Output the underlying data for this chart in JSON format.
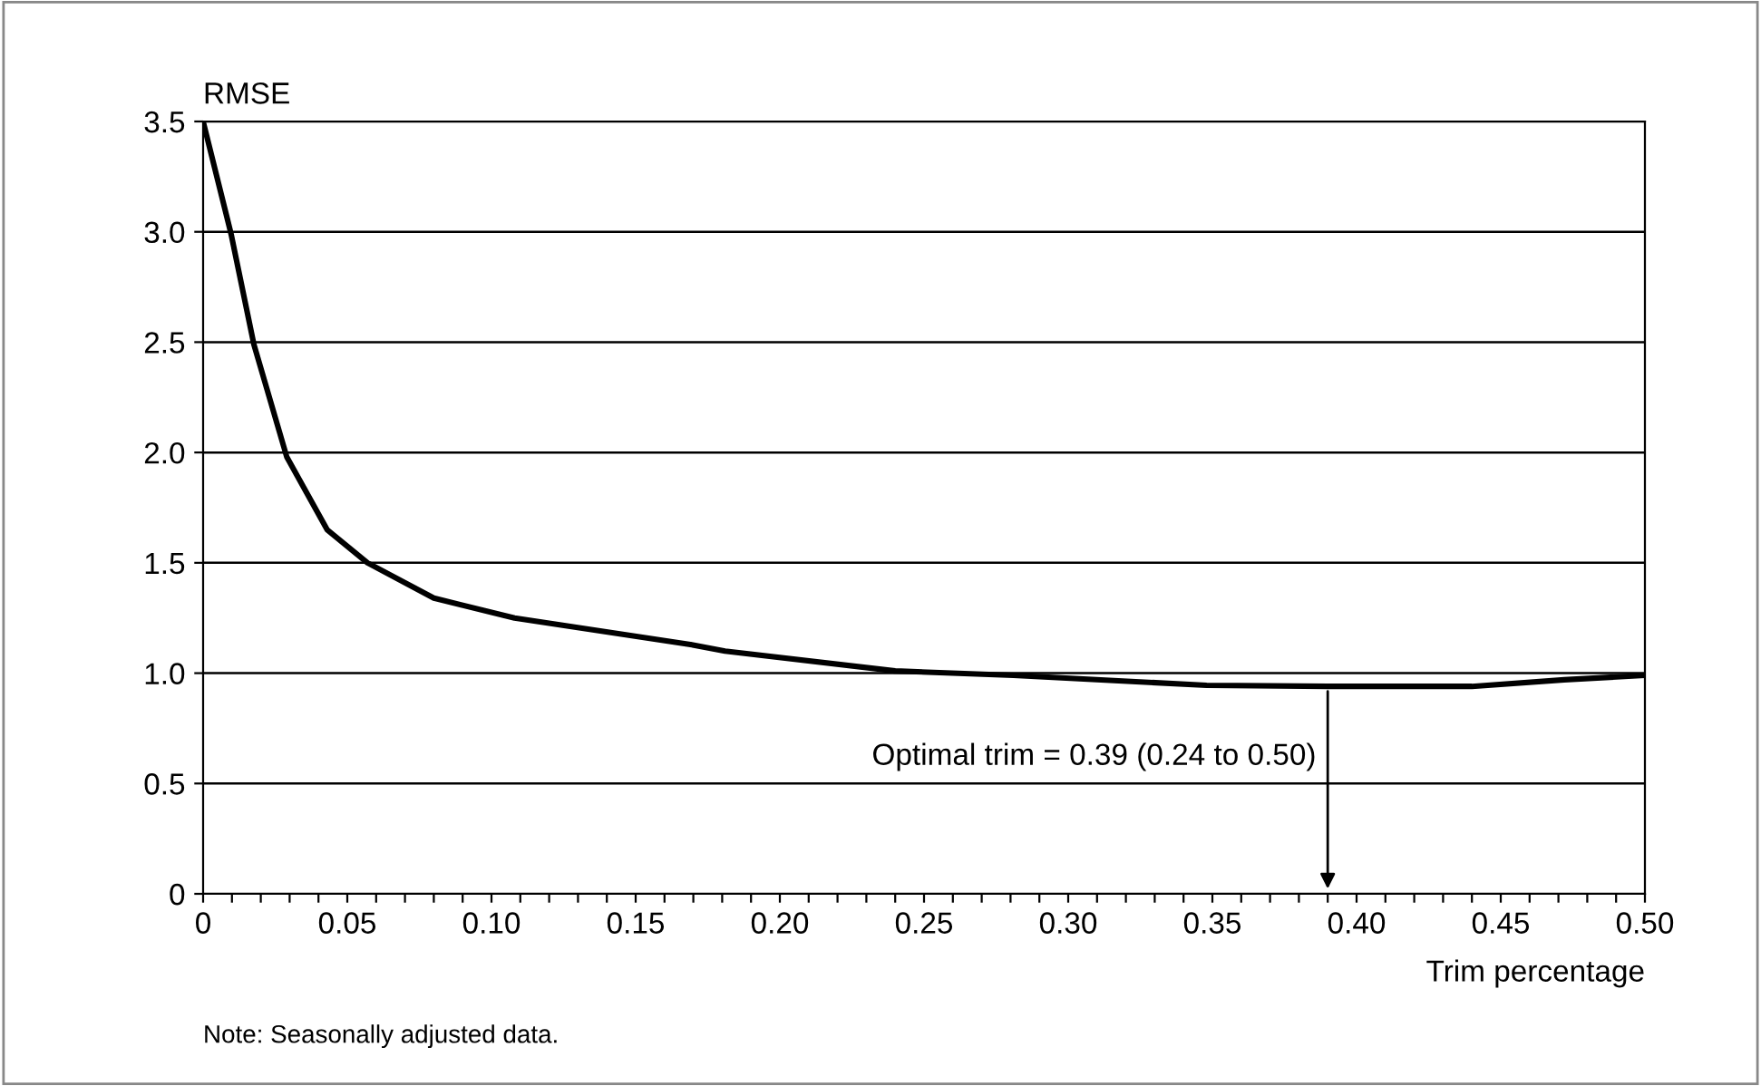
{
  "chart_data": {
    "type": "line",
    "ylabel": "RMSE",
    "xlabel": "Trim percentage",
    "x": [
      0,
      0.0097,
      0.0176,
      0.029,
      0.043,
      0.057,
      0.08,
      0.108,
      0.169,
      0.181,
      0.24,
      0.281,
      0.348,
      0.39,
      0.44,
      0.472,
      0.5
    ],
    "series": [
      {
        "color": "#000000",
        "values": [
          3.5,
          2.99,
          2.49,
          1.98,
          1.65,
          1.5,
          1.34,
          1.25,
          1.13,
          1.1,
          1.01,
          0.99,
          0.945,
          0.94,
          0.94,
          0.97,
          0.99
        ]
      }
    ],
    "xlim": [
      0,
      0.5
    ],
    "ylim": [
      0,
      3.5
    ],
    "xticks": [
      0,
      {
        "value": 0.01,
        "label": null
      },
      {
        "value": 0.02,
        "label": null
      },
      {
        "value": 0.03,
        "label": null
      },
      {
        "value": 0.04,
        "label": null
      },
      {
        "value": 0.05,
        "label": "0.05"
      },
      {
        "value": 0.06,
        "label": null
      },
      {
        "value": 0.07,
        "label": null
      },
      {
        "value": 0.08,
        "label": null
      },
      {
        "value": 0.09,
        "label": null
      },
      {
        "value": 0.1,
        "label": "0.10"
      },
      {
        "value": 0.11,
        "label": null
      },
      {
        "value": 0.12,
        "label": null
      },
      {
        "value": 0.13,
        "label": null
      },
      {
        "value": 0.14,
        "label": null
      },
      {
        "value": 0.15,
        "label": "0.15"
      },
      {
        "value": 0.16,
        "label": null
      },
      {
        "value": 0.17,
        "label": null
      },
      {
        "value": 0.18,
        "label": null
      },
      {
        "value": 0.19,
        "label": null
      },
      {
        "value": 0.2,
        "label": "0.20"
      },
      {
        "value": 0.21,
        "label": null
      },
      {
        "value": 0.22,
        "label": null
      },
      {
        "value": 0.23,
        "label": null
      },
      {
        "value": 0.24,
        "label": null
      },
      {
        "value": 0.25,
        "label": "0.25"
      },
      {
        "value": 0.26,
        "label": null
      },
      {
        "value": 0.27,
        "label": null
      },
      {
        "value": 0.28,
        "label": null
      },
      {
        "value": 0.29,
        "label": null
      },
      {
        "value": 0.3,
        "label": "0.30"
      },
      {
        "value": 0.31,
        "label": null
      },
      {
        "value": 0.32,
        "label": null
      },
      {
        "value": 0.33,
        "label": null
      },
      {
        "value": 0.34,
        "label": null
      },
      {
        "value": 0.35,
        "label": "0.35"
      },
      {
        "value": 0.36,
        "label": null
      },
      {
        "value": 0.37,
        "label": null
      },
      {
        "value": 0.38,
        "label": null
      },
      {
        "value": 0.39,
        "label": null
      },
      {
        "value": 0.4,
        "label": "0.40"
      },
      {
        "value": 0.41,
        "label": null
      },
      {
        "value": 0.42,
        "label": null
      },
      {
        "value": 0.43,
        "label": null
      },
      {
        "value": 0.44,
        "label": null
      },
      {
        "value": 0.45,
        "label": "0.45"
      },
      {
        "value": 0.46,
        "label": null
      },
      {
        "value": 0.47,
        "label": null
      },
      {
        "value": 0.48,
        "label": null
      },
      {
        "value": 0.49,
        "label": null
      },
      {
        "value": 0.5,
        "label": "0.50"
      }
    ],
    "yticks": [
      0,
      {
        "value": 0.5,
        "label": "0.5"
      },
      {
        "value": 1.0,
        "label": "1.0"
      },
      {
        "value": 1.5,
        "label": "1.5"
      },
      {
        "value": 2.0,
        "label": "2.0"
      },
      {
        "value": 2.5,
        "label": "2.5"
      },
      {
        "value": 3.0,
        "label": "3.0"
      },
      {
        "value": 3.5,
        "label": "3.5"
      }
    ],
    "grid": "y",
    "marker": "none",
    "line_style": "solid",
    "legend": false,
    "annotations": [
      {
        "text": "Optimal trim = 0.39 (0.24 to 0.50)",
        "x": 0.39,
        "y": 0.94
      },
      "Note: Seasonally adjusted data."
    ]
  }
}
